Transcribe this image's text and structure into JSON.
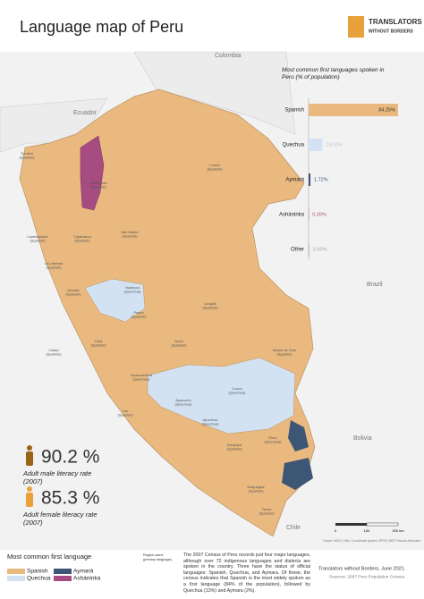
{
  "header": {
    "title": "Language map of Peru",
    "logo_line1": "TRANSLATORS",
    "logo_line2": "WITHOUT BORDERS"
  },
  "map": {
    "countries": [
      "Colombia",
      "Ecuador",
      "Brazil",
      "Bolivia",
      "Chile"
    ],
    "regions": [
      {
        "name": "Tumbes",
        "language": "(Spanish)"
      },
      {
        "name": "Loreto",
        "language": "(Spanish)"
      },
      {
        "name": "Amazonas",
        "language": "(Spanish)"
      },
      {
        "name": "Lambayeque",
        "language": "(Spanish)"
      },
      {
        "name": "Cajamarca",
        "language": "(Spanish)"
      },
      {
        "name": "San Martín",
        "language": "(Spanish)"
      },
      {
        "name": "La Libertad",
        "language": "(Spanish)"
      },
      {
        "name": "Ancash",
        "language": "(Spanish)"
      },
      {
        "name": "Huánuco",
        "language": "(Quechua)"
      },
      {
        "name": "Ucayali",
        "language": "(Spanish)"
      },
      {
        "name": "Pasco",
        "language": "(Spanish)"
      },
      {
        "name": "Lima",
        "language": "(Spanish)"
      },
      {
        "name": "Junín",
        "language": "(Spanish)"
      },
      {
        "name": "Callao",
        "language": "(Spanish)"
      },
      {
        "name": "Madre de Dios",
        "language": "(Spanish)"
      },
      {
        "name": "Huancavelica",
        "language": "(Quechua)"
      },
      {
        "name": "Ica",
        "language": "(Spanish)"
      },
      {
        "name": "Ayacucho",
        "language": "(Quechua)"
      },
      {
        "name": "Cusco",
        "language": "(Quechua)"
      },
      {
        "name": "Apurímac",
        "language": "(Quechua)"
      },
      {
        "name": "Puno",
        "language": "(Quechua)"
      },
      {
        "name": "Arequipa",
        "language": "(Spanish)"
      },
      {
        "name": "Moquegua",
        "language": "(Spanish)"
      },
      {
        "name": "Tacna",
        "language": "(Spanish)"
      }
    ],
    "scale": [
      "0",
      "100",
      "200 km"
    ],
    "datum": "Datum: WGS 1984; Coordinate system: EPSG 3857 Pseudo-Mercator"
  },
  "chart_data": {
    "type": "bar",
    "orientation": "horizontal",
    "title": "Most common first languages spoken in Peru (% of population)",
    "categories": [
      "Spanish",
      "Quechua",
      "Aymará",
      "Asháninka",
      "Other"
    ],
    "values": [
      84.25,
      13.0,
      1.72,
      0.26,
      0.8
    ],
    "value_labels": [
      "84.25%",
      "13.00%",
      "1.72%",
      "0.26%",
      "0.80%"
    ],
    "colors": [
      "#e9b97f",
      "#d3e2f2",
      "#3d5676",
      "#a64c80",
      "#bdbdbd"
    ],
    "label_colors": [
      "#333333",
      "#b9c7d6",
      "#3d5676",
      "#a64c80",
      "#aaaaaa"
    ]
  },
  "stats": [
    {
      "value": "90.2 %",
      "label": "Adult male literacy rate",
      "year": "(2007)",
      "color": "#9a6418"
    },
    {
      "value": "85.3 %",
      "label": "Adult female literacy rate",
      "year": "(2007)",
      "color": "#e9a23b"
    }
  ],
  "legend": {
    "title": "Most common first language",
    "items": [
      {
        "label": "Spanish",
        "color": "#e9b97f"
      },
      {
        "label": "Quechua",
        "color": "#d3e2f2"
      },
      {
        "label": "Aymará",
        "color": "#3d5676"
      },
      {
        "label": "Asháninka",
        "color": "#a64c80"
      }
    ],
    "key_line1": "Region name",
    "key_line2": "(primary language)"
  },
  "body_text": "The 2007 Census of Peru records just four major languages, although over 72 indigenous languages and dialects are spoken in the country. Three have the status of official languages: Spanish, Quechua, and Aymara. Of these, the census indicates that Spanish is the most widely spoken as a first language (84% of the population), followed by Quechua (13%) and Aymara (2%).",
  "footer": {
    "credit": "Translators without Borders, June 2021.",
    "sources": "Sources: 2007 Peru Population Census."
  }
}
